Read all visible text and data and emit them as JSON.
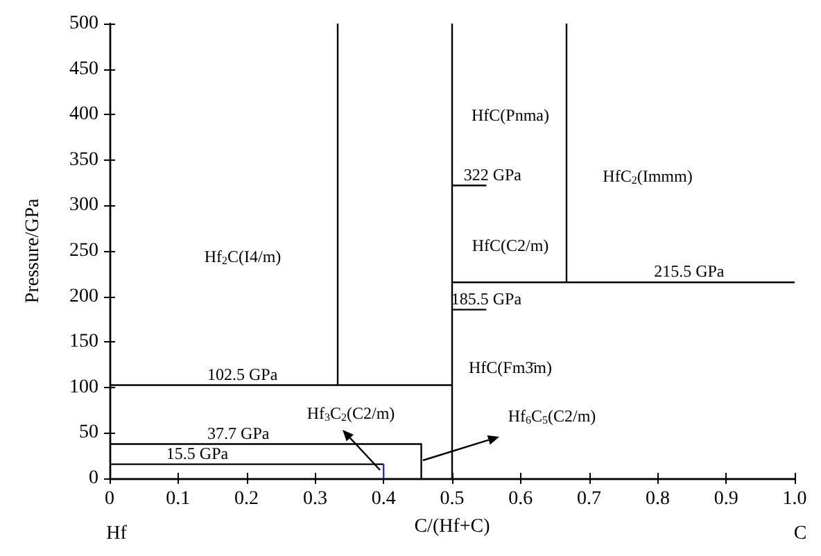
{
  "chart_data": {
    "type": "line",
    "xlabel": "C/(Hf+C)",
    "ylabel": "Pressure/GPa",
    "xlim": [
      0,
      1
    ],
    "xticks": [
      0,
      0.1,
      0.2,
      0.3,
      0.4,
      0.5,
      0.6,
      0.7,
      0.8,
      0.9,
      {
        "value": 1,
        "label": "1.0"
      }
    ],
    "ylim": [
      0,
      500
    ],
    "yticks": [
      0,
      50,
      100,
      150,
      200,
      250,
      300,
      350,
      400,
      450,
      500
    ],
    "grid": false,
    "marker": "none",
    "line_style": "solid",
    "series": [
      {
        "color": "#000000",
        "x": [
          0,
          0.5
        ],
        "values": [
          102.5,
          102.5
        ]
      },
      {
        "color": "#000000",
        "x": [
          0.333,
          0.333
        ],
        "values": [
          102.5,
          500
        ]
      },
      {
        "color": "#000000",
        "x": [
          0.5,
          0.5
        ],
        "values": [
          0,
          500
        ]
      },
      {
        "color": "#000000",
        "x": [
          0.667,
          0.667
        ],
        "values": [
          215.5,
          500
        ]
      },
      {
        "color": "#000000",
        "x": [
          0.5,
          1
        ],
        "values": [
          215.5,
          215.5
        ]
      },
      {
        "color": "#000000",
        "x": [
          0,
          0.455,
          0.455
        ],
        "values": [
          37.7,
          37.7,
          0
        ]
      },
      {
        "color": "#000000",
        "x": [
          0,
          0.4
        ],
        "values": [
          15.5,
          15.5
        ]
      },
      {
        "color": "#1f2fbf",
        "x": [
          0.4,
          0.4
        ],
        "values": [
          15.5,
          0
        ]
      },
      {
        "color": "#000000",
        "x": [
          0.5,
          0.55
        ],
        "values": [
          322,
          322
        ]
      },
      {
        "color": "#000000",
        "x": [
          0.5,
          0.55
        ],
        "values": [
          185.5,
          185.5
        ]
      }
    ],
    "annotations": [
      "Hf",
      "C",
      "Hf$_{2}$C(I4/m)",
      "Hf$_{3}$C$_{2}$(C2/m)",
      "Hf$_{6}$C$_{5}$(C2/m)",
      "HfC(Fm3̄m)",
      "HfC(Pnma)",
      "HfC(C2/m)",
      "HfC$_{2}$(Immm)",
      {
        "text": "102.5 GPa",
        "x": 0.194,
        "y": 102.5
      },
      {
        "text": "37.7 GPa",
        "x": 0.188,
        "y": 37.7
      },
      {
        "text": "15.5 GPa",
        "x": 0.128,
        "y": 15.5
      },
      {
        "text": "322 GPa",
        "x": 0.559,
        "y": 322
      },
      {
        "text": "215.5 GPa",
        "x": 0.846,
        "y": 215.5
      },
      {
        "text": "185.5 GPa",
        "x": 0.55,
        "y": 185.5
      }
    ]
  }
}
